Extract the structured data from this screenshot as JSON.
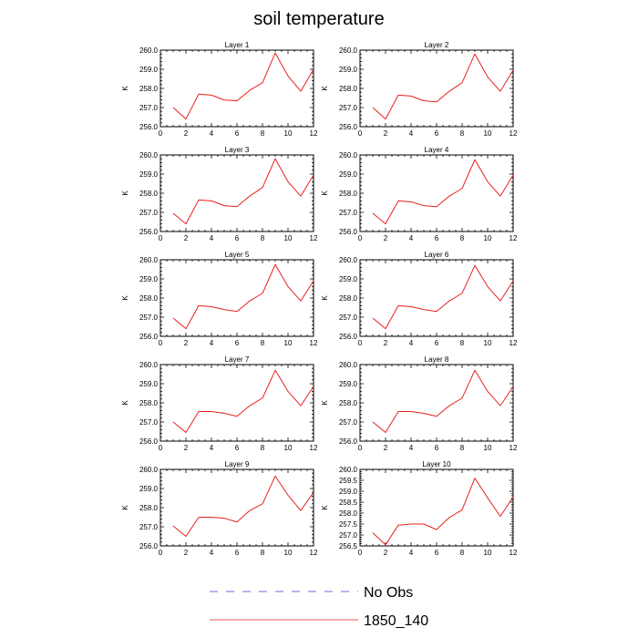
{
  "chart_data": {
    "type": "line",
    "title": "soil temperature",
    "x": [
      1,
      2,
      3,
      4,
      5,
      6,
      7,
      8,
      9,
      10,
      11,
      12
    ],
    "xlim": [
      0,
      12
    ],
    "xticks": [
      0,
      2,
      4,
      6,
      8,
      10,
      12
    ],
    "ylabel": "K",
    "legend": [
      {
        "name": "No Obs",
        "color": "#3b3bd6",
        "style": "dashed"
      },
      {
        "name": "1850_140",
        "color": "#e8201c",
        "style": "solid"
      }
    ],
    "panels": [
      {
        "title": "Layer 1",
        "ylim": [
          256.0,
          260.0
        ],
        "yticks": [
          "256.0",
          "257.0",
          "258.0",
          "259.0",
          "260.0"
        ],
        "series": [
          {
            "name": "1850_140",
            "values": [
              257.0,
              256.4,
              257.7,
              257.65,
              257.4,
              257.35,
              257.9,
              258.3,
              259.85,
              258.65,
              257.85,
              259.0
            ]
          }
        ]
      },
      {
        "title": "Layer 2",
        "ylim": [
          256.0,
          260.0
        ],
        "yticks": [
          "256.0",
          "257.0",
          "258.0",
          "259.0",
          "260.0"
        ],
        "series": [
          {
            "name": "1850_140",
            "values": [
              257.0,
              256.4,
              257.65,
              257.6,
              257.35,
              257.3,
              257.85,
              258.3,
              259.8,
              258.6,
              257.85,
              258.95
            ]
          }
        ]
      },
      {
        "title": "Layer 3",
        "ylim": [
          256.0,
          260.0
        ],
        "yticks": [
          "256.0",
          "257.0",
          "258.0",
          "259.0",
          "260.0"
        ],
        "series": [
          {
            "name": "1850_140",
            "values": [
              256.95,
              256.4,
              257.65,
              257.6,
              257.35,
              257.3,
              257.85,
              258.3,
              259.8,
              258.6,
              257.85,
              258.95
            ]
          }
        ]
      },
      {
        "title": "Layer 4",
        "ylim": [
          256.0,
          260.0
        ],
        "yticks": [
          "256.0",
          "257.0",
          "258.0",
          "259.0",
          "260.0"
        ],
        "series": [
          {
            "name": "1850_140",
            "values": [
              256.95,
              256.4,
              257.6,
              257.55,
              257.35,
              257.3,
              257.85,
              258.25,
              259.75,
              258.6,
              257.85,
              258.95
            ]
          }
        ]
      },
      {
        "title": "Layer 5",
        "ylim": [
          256.0,
          260.0
        ],
        "yticks": [
          "256.0",
          "257.0",
          "258.0",
          "259.0",
          "260.0"
        ],
        "series": [
          {
            "name": "1850_140",
            "values": [
              256.95,
              256.4,
              257.6,
              257.55,
              257.4,
              257.3,
              257.85,
              258.25,
              259.75,
              258.6,
              257.85,
              258.9
            ]
          }
        ]
      },
      {
        "title": "Layer 6",
        "ylim": [
          256.0,
          260.0
        ],
        "yticks": [
          "256.0",
          "257.0",
          "258.0",
          "259.0",
          "260.0"
        ],
        "series": [
          {
            "name": "1850_140",
            "values": [
              256.95,
              256.4,
              257.6,
              257.55,
              257.4,
              257.3,
              257.85,
              258.25,
              259.7,
              258.6,
              257.85,
              258.9
            ]
          }
        ]
      },
      {
        "title": "Layer 7",
        "ylim": [
          256.0,
          260.0
        ],
        "yticks": [
          "256.0",
          "257.0",
          "258.0",
          "259.0",
          "260.0"
        ],
        "series": [
          {
            "name": "1850_140",
            "values": [
              257.0,
              256.45,
              257.55,
              257.55,
              257.45,
              257.3,
              257.85,
              258.25,
              259.7,
              258.6,
              257.85,
              258.85
            ]
          }
        ]
      },
      {
        "title": "Layer 8",
        "ylim": [
          256.0,
          260.0
        ],
        "yticks": [
          "256.0",
          "257.0",
          "258.0",
          "259.0",
          "260.0"
        ],
        "series": [
          {
            "name": "1850_140",
            "values": [
              257.0,
              256.45,
              257.55,
              257.55,
              257.45,
              257.3,
              257.85,
              258.25,
              259.7,
              258.6,
              257.85,
              258.85
            ]
          }
        ]
      },
      {
        "title": "Layer 9",
        "ylim": [
          256.0,
          260.0
        ],
        "yticks": [
          "256.0",
          "257.0",
          "258.0",
          "259.0",
          "260.0"
        ],
        "series": [
          {
            "name": "1850_140",
            "values": [
              257.05,
              256.5,
              257.5,
              257.5,
              257.45,
              257.25,
              257.85,
              258.2,
              259.65,
              258.65,
              257.85,
              258.8
            ]
          }
        ]
      },
      {
        "title": "Layer 10",
        "ylim": [
          256.5,
          260.0
        ],
        "yticks": [
          "256.5",
          "257.0",
          "257.5",
          "258.0",
          "258.5",
          "259.0",
          "259.5",
          "260.0"
        ],
        "series": [
          {
            "name": "1850_140",
            "values": [
              257.1,
              256.55,
              257.45,
              257.5,
              257.5,
              257.25,
              257.8,
              258.15,
              259.6,
              258.7,
              257.85,
              258.75
            ]
          }
        ]
      }
    ]
  }
}
